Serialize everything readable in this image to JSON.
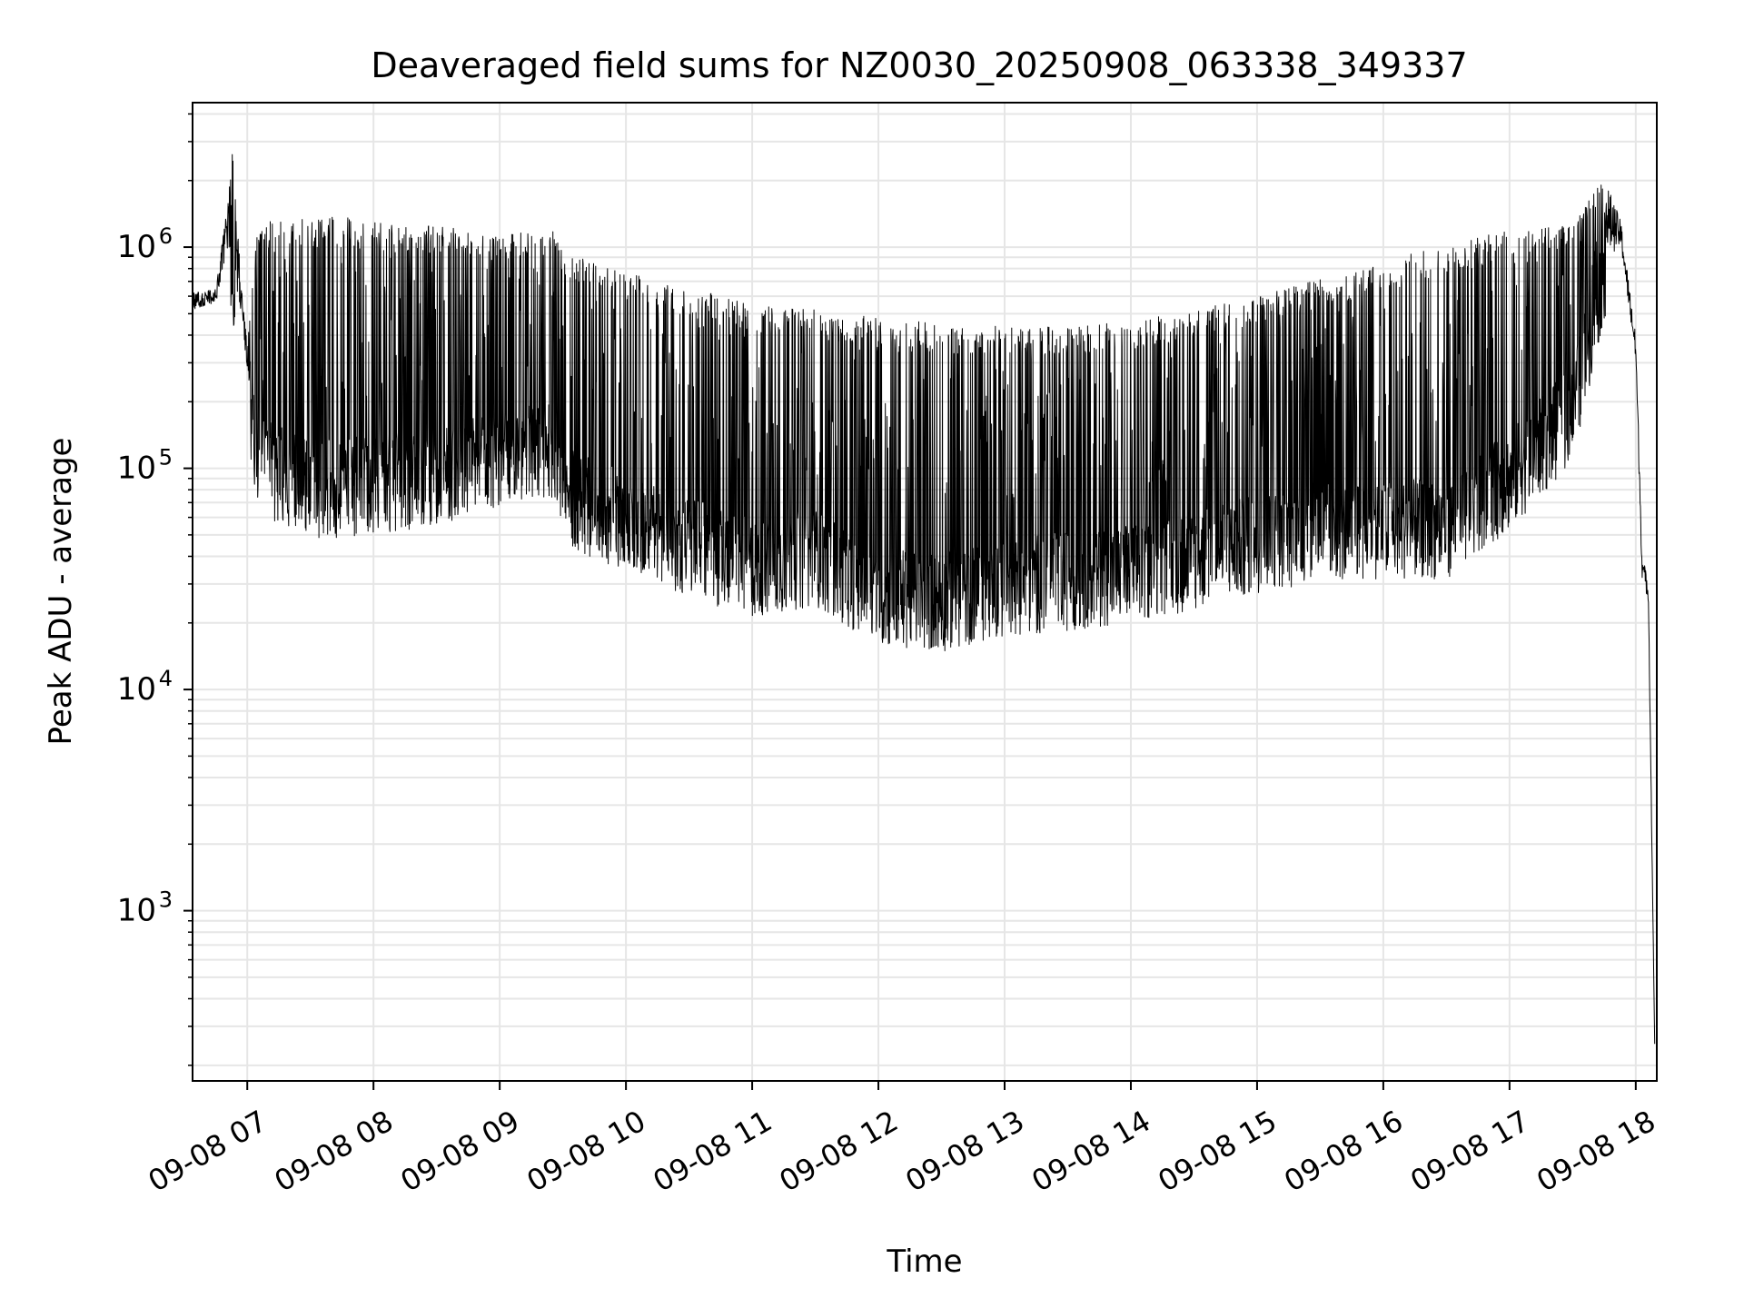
{
  "chart_data": {
    "type": "line",
    "title": "Deaveraged field sums for NZ0030_20250908_063338_349337",
    "xlabel": "Time",
    "ylabel": "Peak ADU - average",
    "yscale": "log",
    "xlim": [
      "2025-09-08T06:34:00",
      "2025-09-08T18:10:00"
    ],
    "ylim": [
      170,
      4500000
    ],
    "grid": true,
    "legend": "none",
    "line_color": "#000000",
    "x_ticks": [
      {
        "value": "2025-09-08T07:00:00",
        "label": "09-08 07"
      },
      {
        "value": "2025-09-08T08:00:00",
        "label": "09-08 08"
      },
      {
        "value": "2025-09-08T09:00:00",
        "label": "09-08 09"
      },
      {
        "value": "2025-09-08T10:00:00",
        "label": "09-08 10"
      },
      {
        "value": "2025-09-08T11:00:00",
        "label": "09-08 11"
      },
      {
        "value": "2025-09-08T12:00:00",
        "label": "09-08 12"
      },
      {
        "value": "2025-09-08T13:00:00",
        "label": "09-08 13"
      },
      {
        "value": "2025-09-08T14:00:00",
        "label": "09-08 14"
      },
      {
        "value": "2025-09-08T15:00:00",
        "label": "09-08 15"
      },
      {
        "value": "2025-09-08T16:00:00",
        "label": "09-08 16"
      },
      {
        "value": "2025-09-08T17:00:00",
        "label": "09-08 17"
      },
      {
        "value": "2025-09-08T18:00:00",
        "label": "09-08 18"
      }
    ],
    "y_ticks": [
      {
        "value": 1000,
        "base": "10",
        "exp": "3"
      },
      {
        "value": 10000,
        "base": "10",
        "exp": "4"
      },
      {
        "value": 100000,
        "base": "10",
        "exp": "5"
      },
      {
        "value": 1000000,
        "base": "10",
        "exp": "6"
      }
    ],
    "series": [
      {
        "peak_envelope": [
          [
            "2025-09-08T06:34:00",
            620000
          ],
          [
            "2025-09-08T06:45:00",
            650000
          ],
          [
            "2025-09-08T06:51:00",
            1700000
          ],
          [
            "2025-09-08T06:53:00",
            2800000
          ],
          [
            "2025-09-08T06:57:00",
            700000
          ],
          [
            "2025-09-08T07:00:00",
            380000
          ],
          [
            "2025-09-08T07:05:00",
            1300000
          ],
          [
            "2025-09-08T07:30:00",
            1350000
          ],
          [
            "2025-09-08T07:40:00",
            1400000
          ],
          [
            "2025-09-08T08:00:00",
            1300000
          ],
          [
            "2025-09-08T08:30:00",
            1250000
          ],
          [
            "2025-09-08T09:00:00",
            1150000
          ],
          [
            "2025-09-08T09:25:00",
            1200000
          ],
          [
            "2025-09-08T09:30:00",
            950000
          ],
          [
            "2025-09-08T10:00:00",
            780000
          ],
          [
            "2025-09-08T10:30:00",
            650000
          ],
          [
            "2025-09-08T11:00:00",
            560000
          ],
          [
            "2025-09-08T11:30:00",
            520000
          ],
          [
            "2025-09-08T12:00:00",
            480000
          ],
          [
            "2025-09-08T12:30:00",
            460000
          ],
          [
            "2025-09-08T13:00:00",
            440000
          ],
          [
            "2025-09-08T13:30:00",
            440000
          ],
          [
            "2025-09-08T14:00:00",
            460000
          ],
          [
            "2025-09-08T14:30:00",
            520000
          ],
          [
            "2025-09-08T15:00:00",
            600000
          ],
          [
            "2025-09-08T15:30:00",
            720000
          ],
          [
            "2025-09-08T16:00:00",
            850000
          ],
          [
            "2025-09-08T16:30:00",
            1050000
          ],
          [
            "2025-09-08T17:00:00",
            1200000
          ],
          [
            "2025-09-08T17:30:00",
            1250000
          ],
          [
            "2025-09-08T17:45:00",
            2100000
          ],
          [
            "2025-09-08T17:53:00",
            1300000
          ],
          [
            "2025-09-08T18:00:00",
            400000
          ],
          [
            "2025-09-08T18:03:00",
            42000
          ],
          [
            "2025-09-08T18:06:00",
            30000
          ],
          [
            "2025-09-08T18:09:00",
            250
          ]
        ],
        "baseline": [
          [
            "2025-09-08T06:34:00",
            520000
          ],
          [
            "2025-09-08T06:45:00",
            560000
          ],
          [
            "2025-09-08T06:52:00",
            1000000
          ],
          [
            "2025-09-08T06:57:00",
            500000
          ],
          [
            "2025-09-08T07:00:00",
            280000
          ],
          [
            "2025-09-08T07:05:00",
            120000
          ],
          [
            "2025-09-08T07:30:00",
            90000
          ],
          [
            "2025-09-08T08:00:00",
            95000
          ],
          [
            "2025-09-08T08:30:00",
            105000
          ],
          [
            "2025-09-08T09:00:00",
            120000
          ],
          [
            "2025-09-08T09:25:00",
            140000
          ],
          [
            "2025-09-08T09:30:00",
            85000
          ],
          [
            "2025-09-08T10:00:00",
            65000
          ],
          [
            "2025-09-08T10:30:00",
            50000
          ],
          [
            "2025-09-08T11:00:00",
            40000
          ],
          [
            "2025-09-08T11:30:00",
            45000
          ],
          [
            "2025-09-08T12:00:00",
            30000
          ],
          [
            "2025-09-08T12:30:00",
            28000
          ],
          [
            "2025-09-08T13:00:00",
            33000
          ],
          [
            "2025-09-08T13:30:00",
            35000
          ],
          [
            "2025-09-08T14:00:00",
            38000
          ],
          [
            "2025-09-08T14:30:00",
            43000
          ],
          [
            "2025-09-08T15:00:00",
            52000
          ],
          [
            "2025-09-08T15:30:00",
            58000
          ],
          [
            "2025-09-08T16:00:00",
            60000
          ],
          [
            "2025-09-08T16:30:00",
            60000
          ],
          [
            "2025-09-08T17:00:00",
            100000
          ],
          [
            "2025-09-08T17:30:00",
            200000
          ],
          [
            "2025-09-08T17:45:00",
            900000
          ],
          [
            "2025-09-08T17:53:00",
            1000000
          ],
          [
            "2025-09-08T18:00:00",
            300000
          ],
          [
            "2025-09-08T18:03:00",
            32000
          ],
          [
            "2025-09-08T18:06:00",
            25000
          ],
          [
            "2025-09-08T18:09:00",
            250
          ]
        ]
      }
    ]
  }
}
